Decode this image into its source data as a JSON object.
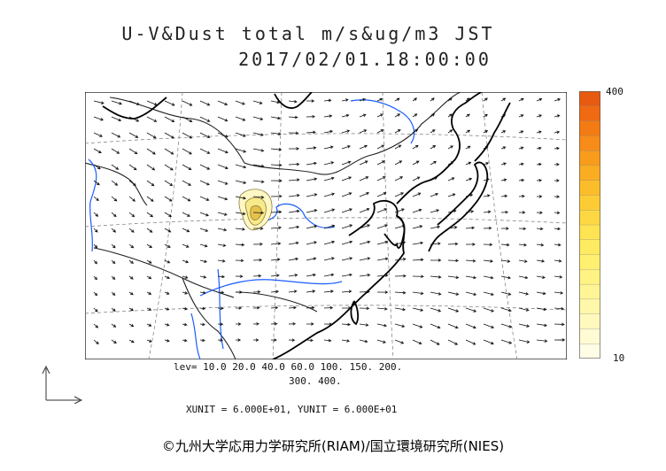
{
  "title": {
    "line1": "U-V&Dust total m/s&ug/m3 JST",
    "line2": "2017/02/01.18:00:00"
  },
  "colorbar": {
    "max_label": "400",
    "min_label": "10",
    "colors": [
      "#e85a10",
      "#ef6a12",
      "#f47b14",
      "#f78c18",
      "#f99c1c",
      "#fbad22",
      "#fcbd2a",
      "#fdcc34",
      "#fdd842",
      "#fee352",
      "#feeb62",
      "#fff072",
      "#fff384",
      "#fff596",
      "#fff7aa",
      "#fff9be",
      "#fffbd2",
      "#fffde6"
    ]
  },
  "contour_levels": {
    "line1": "lev= 10.0 20.0 40.0 60.0 100. 150. 200.",
    "line2": "300. 400."
  },
  "units": {
    "text": "XUNIT = 6.000E+01, YUNIT = 6.000E+01"
  },
  "copyright": "©九州大学応用力学研究所(RIAM)/国立環境研究所(NIES)",
  "colors": {
    "coast": "#000000",
    "river": "#1a5cff",
    "border": "#222222",
    "vector": "#111111",
    "grid": "#777777",
    "dust_low": "#fff8c4",
    "dust_mid": "#f7ea8a",
    "dust_high": "#e7c24a"
  },
  "icons": {
    "axis_indicator": "xy-axis-arrows-icon"
  }
}
